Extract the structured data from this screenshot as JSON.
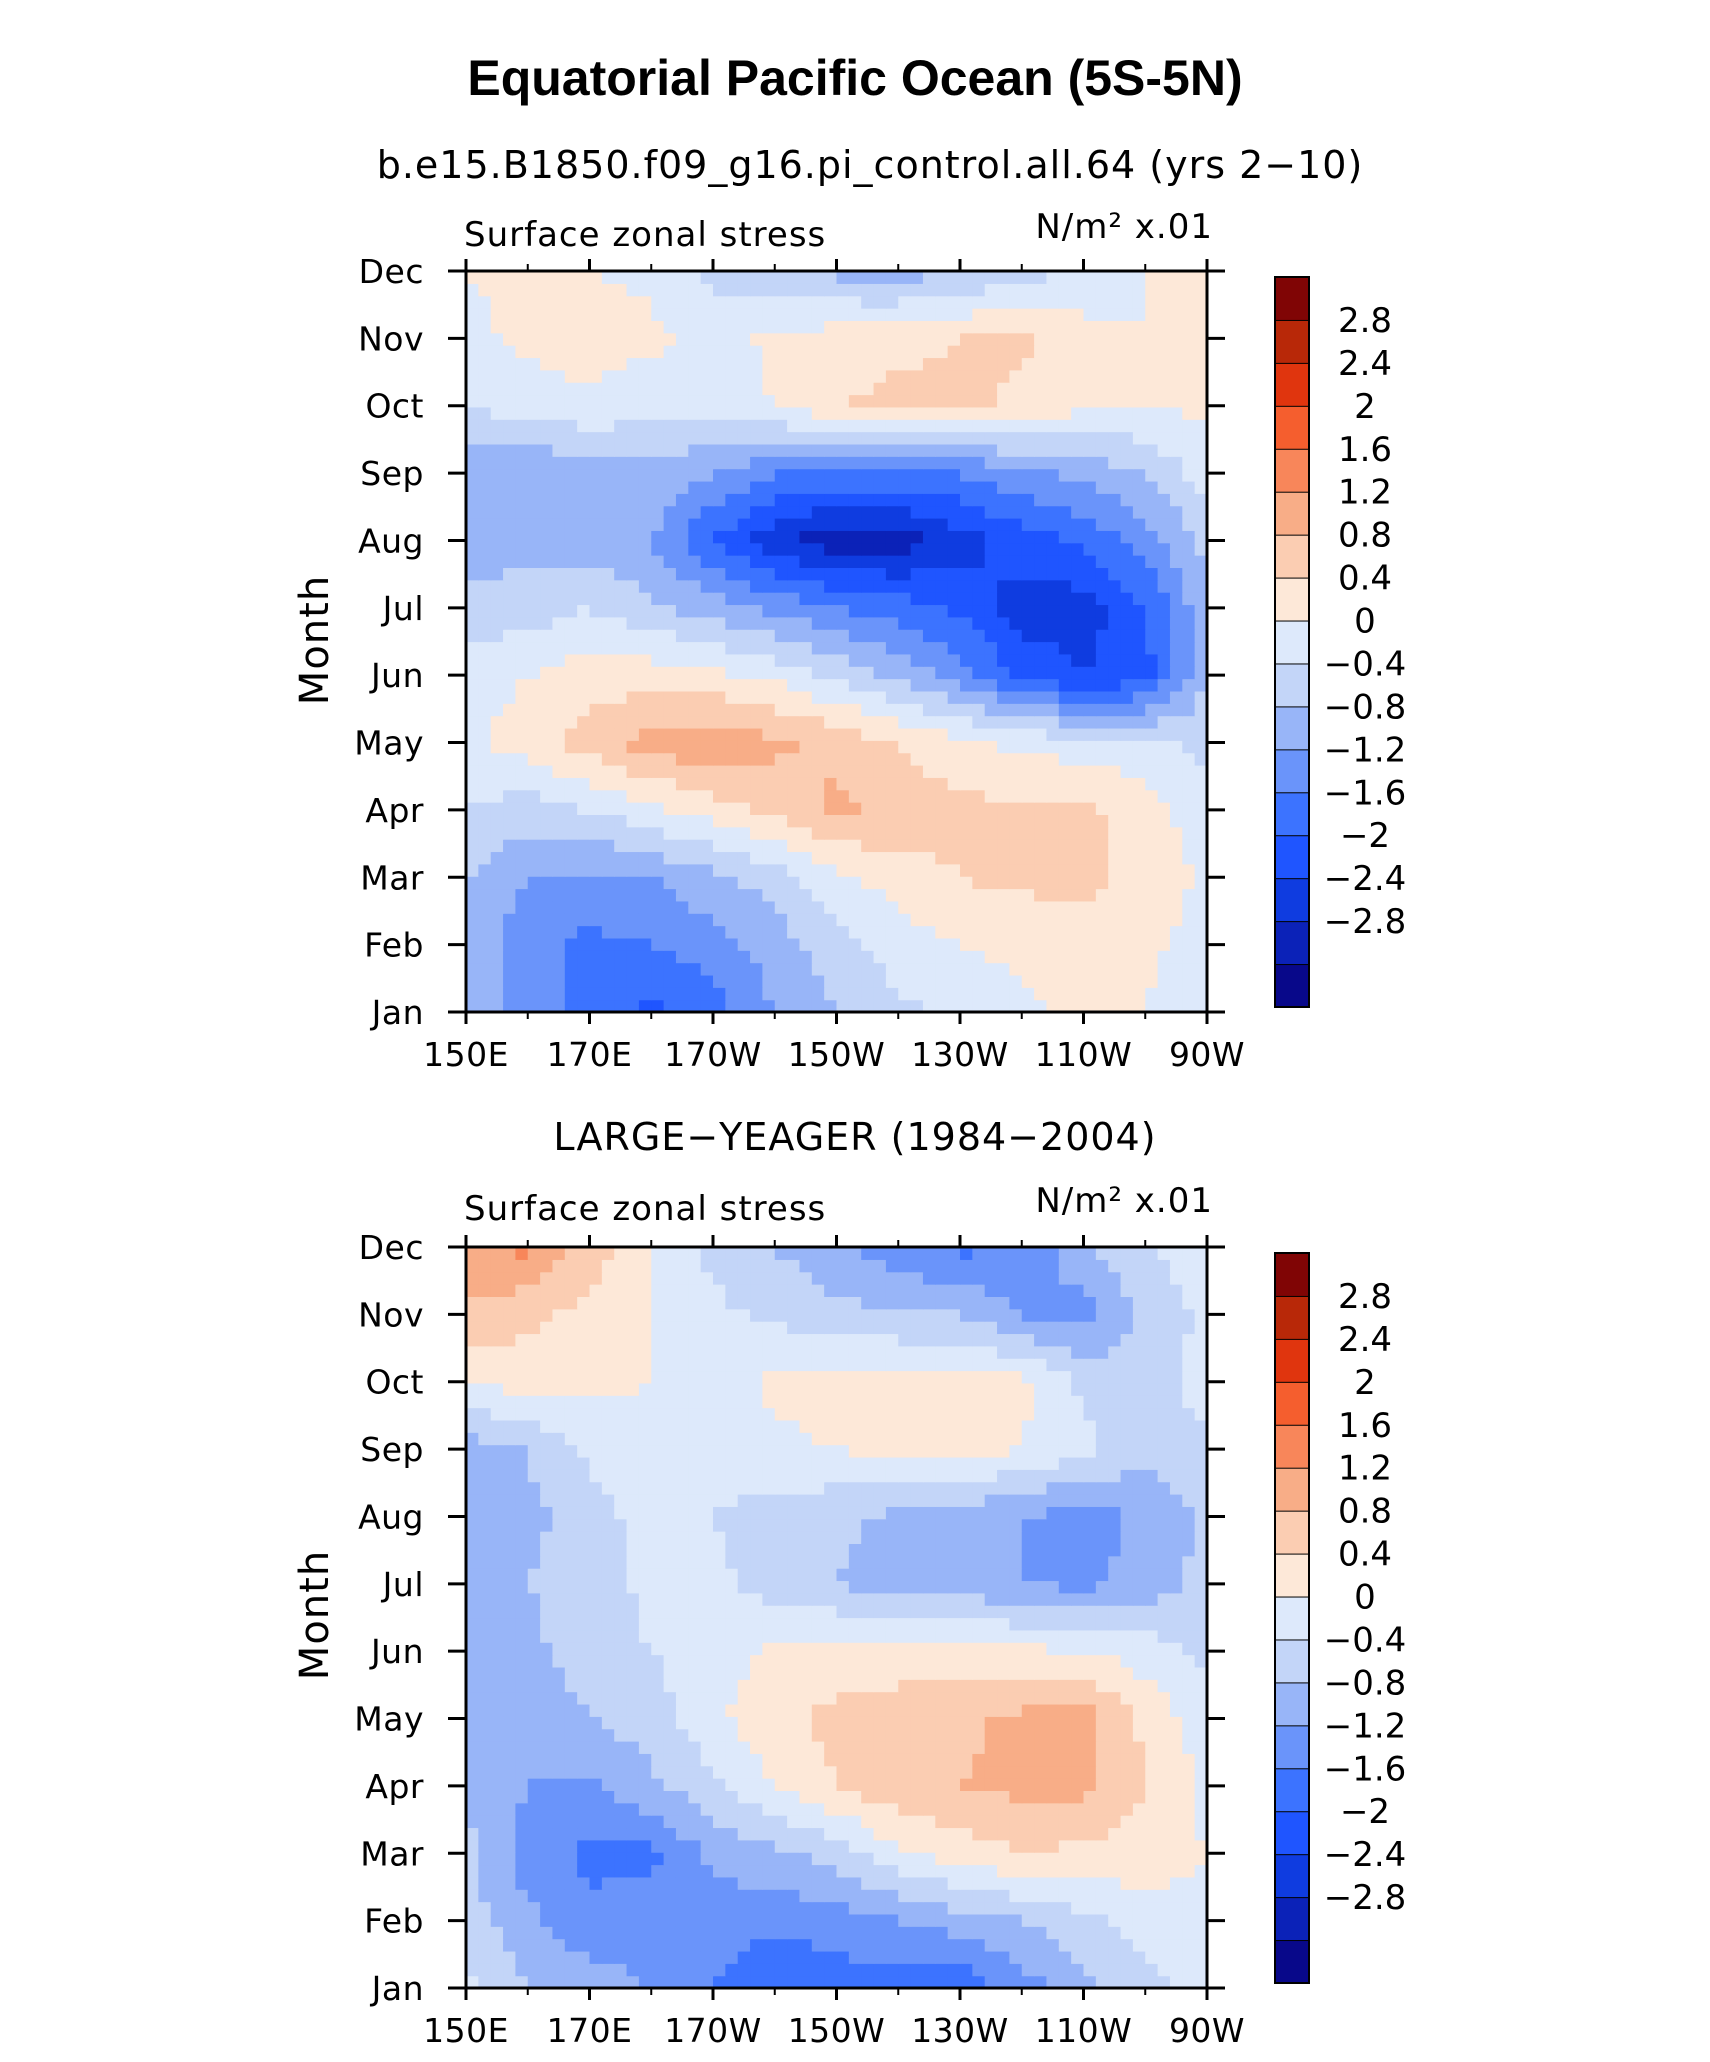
{
  "figure": {
    "title": "Equatorial Pacific Ocean (5S-5N)"
  },
  "colorbar": {
    "labels": [
      "2.8",
      "2.4",
      "2",
      "1.6",
      "1.2",
      "0.8",
      "0.4",
      "0",
      "−0.4",
      "−0.8",
      "−1.2",
      "−1.6",
      "−2",
      "−2.4",
      "−2.8"
    ],
    "colors": [
      "#08088a",
      "#0b22b8",
      "#0f3ce0",
      "#1f55ff",
      "#3c73ff",
      "#6a94fa",
      "#98b5f8",
      "#c3d5f8",
      "#dde9fb",
      "#fde8d8",
      "#fbcdb2",
      "#f8ad87",
      "#f8865a",
      "#f55e2e",
      "#e0350e",
      "#b82808",
      "#800505"
    ]
  },
  "chart_data": [
    {
      "type": "heatmap",
      "title": "b.e15.B1850.f09_g16.pi_control.all.64 (yrs 2−10)",
      "left_label": "Surface zonal stress",
      "right_label": "N/m² x.01",
      "xlabel": "",
      "ylabel": "Month",
      "x_ticklabels": [
        "150E",
        "170E",
        "170W",
        "150W",
        "130W",
        "110W",
        "90W"
      ],
      "y_ticklabels": [
        "Jan",
        "Feb",
        "Mar",
        "Apr",
        "May",
        "Jun",
        "Jul",
        "Aug",
        "Sep",
        "Oct",
        "Nov",
        "Dec"
      ],
      "levels": [
        -2.8,
        -2.4,
        -2,
        -1.6,
        -1.2,
        -0.8,
        -0.4,
        0,
        0.4,
        0.8,
        1.2,
        1.6,
        2,
        2.4,
        2.8
      ],
      "grid_columns": [
        "150E",
        "160E",
        "170E",
        "180",
        "170W",
        "160W",
        "150W",
        "140W",
        "130W",
        "120W",
        "110W",
        "100W",
        "90W"
      ],
      "values": [
        [
          -0.6,
          -1.0,
          -1.3,
          -1.7,
          -1.4,
          -0.8,
          -0.4,
          -0.1,
          0.1,
          0.3,
          0.5,
          0.4,
          0.1
        ],
        [
          -0.5,
          -1.1,
          -1.3,
          -1.2,
          -1.0,
          -0.6,
          -0.2,
          0.2,
          0.4,
          0.5,
          0.6,
          0.5,
          0.2
        ],
        [
          -0.4,
          -0.8,
          -0.9,
          -0.8,
          -0.5,
          -0.2,
          0.3,
          0.6,
          0.8,
          0.9,
          0.9,
          0.7,
          0.3
        ],
        [
          0.0,
          -0.2,
          0.0,
          0.3,
          0.6,
          0.9,
          1.3,
          1.1,
          0.9,
          0.9,
          0.9,
          0.6,
          0.1
        ],
        [
          0.3,
          0.6,
          1.0,
          1.4,
          1.5,
          1.3,
          1.1,
          0.8,
          0.5,
          0.3,
          0.2,
          0.1,
          -0.1
        ],
        [
          0.2,
          0.4,
          0.6,
          0.6,
          0.5,
          0.3,
          -0.1,
          -0.5,
          -1.0,
          -1.7,
          -2.0,
          -1.8,
          -0.4
        ],
        [
          -0.3,
          -0.2,
          0.0,
          -0.3,
          -0.6,
          -0.9,
          -1.2,
          -1.4,
          -1.7,
          -2.2,
          -2.2,
          -1.6,
          -0.5
        ],
        [
          -0.6,
          -0.5,
          -0.6,
          -0.8,
          -1.6,
          -2.3,
          -2.7,
          -2.6,
          -2.2,
          -1.8,
          -1.5,
          -1.0,
          -0.3
        ],
        [
          -0.7,
          -0.8,
          -0.6,
          -0.5,
          -0.8,
          -1.2,
          -1.3,
          -1.3,
          -1.2,
          -0.9,
          -0.7,
          -0.4,
          0.2
        ],
        [
          0.0,
          0.2,
          0.3,
          0.1,
          0.2,
          0.4,
          0.8,
          0.9,
          0.9,
          0.7,
          0.5,
          0.4,
          0.5
        ],
        [
          0.3,
          0.5,
          0.6,
          0.5,
          0.2,
          0.5,
          0.6,
          0.7,
          0.8,
          0.9,
          0.5,
          0.4,
          0.5
        ],
        [
          0.4,
          0.5,
          0.4,
          0.3,
          -0.1,
          -0.3,
          -0.5,
          -0.6,
          -0.4,
          -0.2,
          0.2,
          0.4,
          0.5
        ]
      ]
    },
    {
      "type": "heatmap",
      "title": "LARGE−YEAGER (1984−2004)",
      "left_label": "Surface zonal stress",
      "right_label": "N/m² x.01",
      "xlabel": "",
      "ylabel": "Month",
      "x_ticklabels": [
        "150E",
        "170E",
        "170W",
        "150W",
        "130W",
        "110W",
        "90W"
      ],
      "y_ticklabels": [
        "Jan",
        "Feb",
        "Mar",
        "Apr",
        "May",
        "Jun",
        "Jul",
        "Aug",
        "Sep",
        "Oct",
        "Nov",
        "Dec"
      ],
      "levels": [
        -2.8,
        -2.4,
        -2,
        -1.6,
        -1.2,
        -0.8,
        -0.4,
        0,
        0.4,
        0.8,
        1.2,
        1.6,
        2,
        2.4,
        2.8
      ],
      "grid_columns": [
        "150E",
        "160E",
        "170E",
        "180",
        "170W",
        "160W",
        "150W",
        "140W",
        "130W",
        "120W",
        "110W",
        "100W",
        "90W"
      ],
      "values": [
        [
          0.1,
          -0.4,
          -0.6,
          -0.8,
          -1.2,
          -1.6,
          -1.4,
          -1.4,
          -1.5,
          -1.0,
          -0.5,
          -0.2,
          0.2
        ],
        [
          -0.2,
          -0.7,
          -1.1,
          -1.0,
          -1.0,
          -1.1,
          -1.0,
          -0.8,
          -0.6,
          -0.4,
          -0.1,
          0.2,
          0.3
        ],
        [
          -0.3,
          -1.0,
          -1.3,
          -1.3,
          -0.7,
          -0.5,
          -0.2,
          0.3,
          0.6,
          0.8,
          0.7,
          0.6,
          0.4
        ],
        [
          -0.4,
          -0.8,
          -0.9,
          -0.5,
          -0.1,
          0.4,
          0.8,
          1.1,
          1.2,
          1.3,
          1.3,
          0.8,
          0.3
        ],
        [
          -0.4,
          -0.7,
          -0.4,
          -0.2,
          0.3,
          0.7,
          0.9,
          1.0,
          1.1,
          1.3,
          1.4,
          0.7,
          0.2
        ],
        [
          -0.4,
          -0.5,
          -0.2,
          0.0,
          0.2,
          0.5,
          0.6,
          0.6,
          0.6,
          0.5,
          0.4,
          0.2,
          -0.1
        ],
        [
          -0.5,
          -0.4,
          -0.2,
          0.1,
          0.1,
          -0.2,
          -0.4,
          -0.6,
          -0.6,
          -0.8,
          -0.9,
          -0.6,
          -0.3
        ],
        [
          -0.8,
          -0.5,
          -0.2,
          0.2,
          0.0,
          -0.2,
          -0.3,
          -0.5,
          -0.6,
          -0.8,
          -1.0,
          -0.7,
          -0.3
        ],
        [
          -0.6,
          -0.4,
          0.1,
          0.3,
          0.3,
          0.3,
          0.4,
          0.5,
          0.6,
          0.4,
          0.1,
          -0.3,
          -0.1
        ],
        [
          0.4,
          0.6,
          0.5,
          0.4,
          0.2,
          0.5,
          0.6,
          0.5,
          0.6,
          0.5,
          -0.1,
          -0.2,
          0.2
        ],
        [
          1.1,
          0.9,
          0.7,
          0.4,
          0.1,
          -0.1,
          -0.3,
          -0.3,
          -0.4,
          -0.8,
          -1.0,
          -0.3,
          0.1
        ],
        [
          1.5,
          1.7,
          1.0,
          0.4,
          -0.1,
          -0.4,
          -0.7,
          -1.1,
          -1.3,
          -1.1,
          -0.5,
          0.0,
          0.2
        ]
      ]
    }
  ]
}
